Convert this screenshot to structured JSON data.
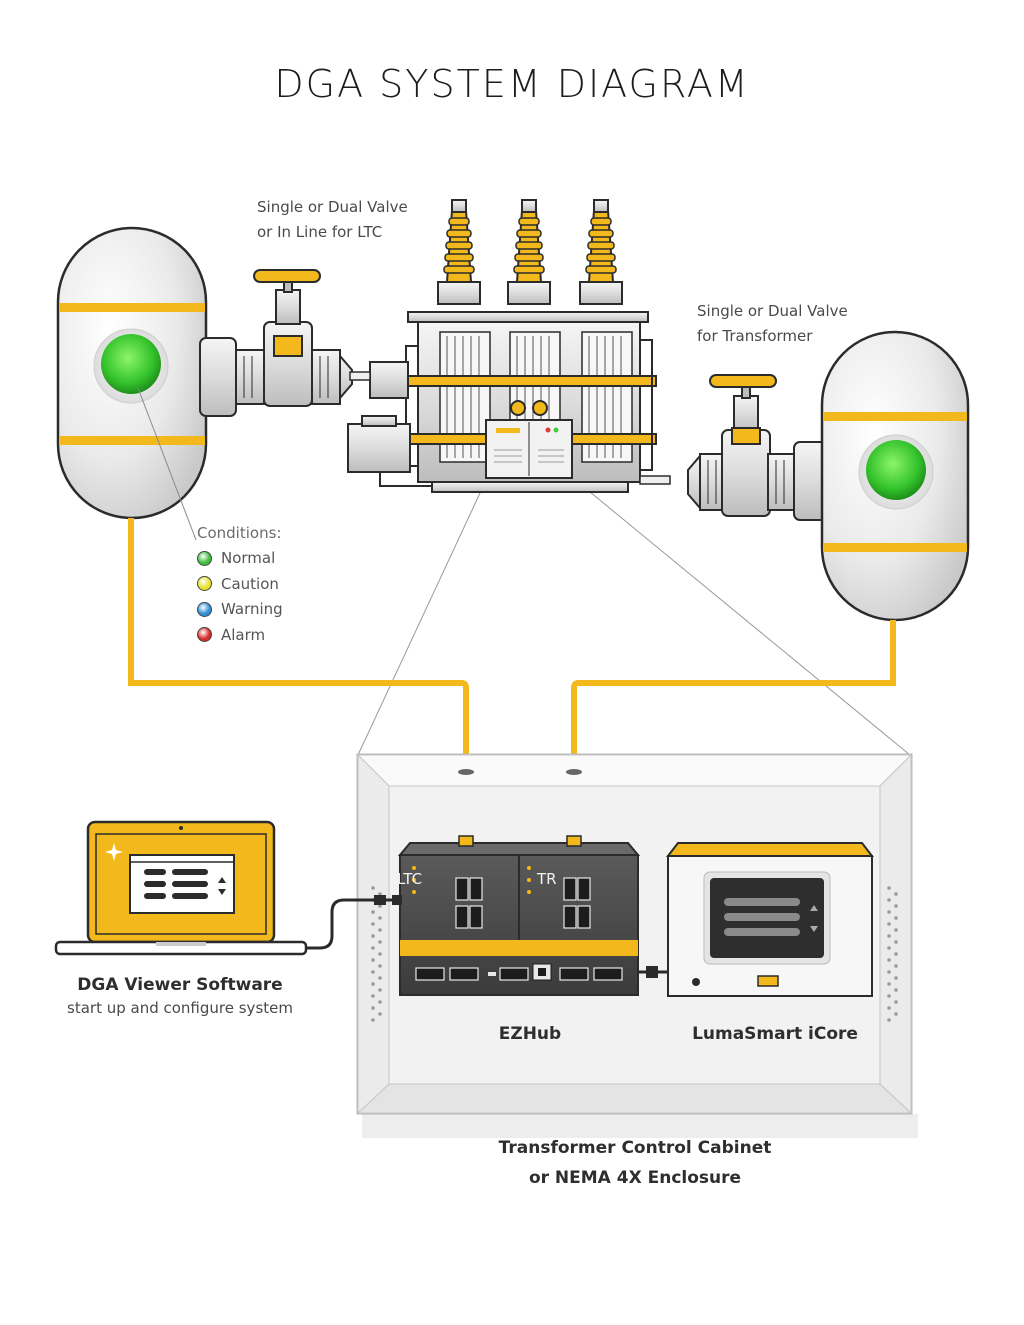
{
  "title": "DGA SYSTEM DIAGRAM",
  "notes": {
    "ltc_valve_line1": "Single or Dual Valve",
    "ltc_valve_line2": "or In Line for LTC",
    "tr_valve_line1": "Single or Dual Valve",
    "tr_valve_line2": "for Transformer"
  },
  "conditions": {
    "title": "Conditions:",
    "items": [
      {
        "label": "Normal",
        "color": "#3fbf3a"
      },
      {
        "label": "Caution",
        "color": "#e6e22a"
      },
      {
        "label": "Warning",
        "color": "#2f8fd6"
      },
      {
        "label": "Alarm",
        "color": "#d52b2b"
      }
    ]
  },
  "laptop": {
    "title": "DGA Viewer Software",
    "subtitle": "start up and configure system"
  },
  "ezhub": {
    "label": "EZHub",
    "left_port_label": "LTC",
    "right_port_label": "TR"
  },
  "icore": {
    "label": "LumaSmart iCore"
  },
  "cabinet": {
    "line1": "Transformer Control Cabinet",
    "line2": "or NEMA 4X Enclosure"
  },
  "colors": {
    "accent": "#f3b81b",
    "outline": "#2b2b2b",
    "tank": "#eeeeee",
    "indicator": "#3fcf3a",
    "device_dark": "#4a4a4a"
  }
}
